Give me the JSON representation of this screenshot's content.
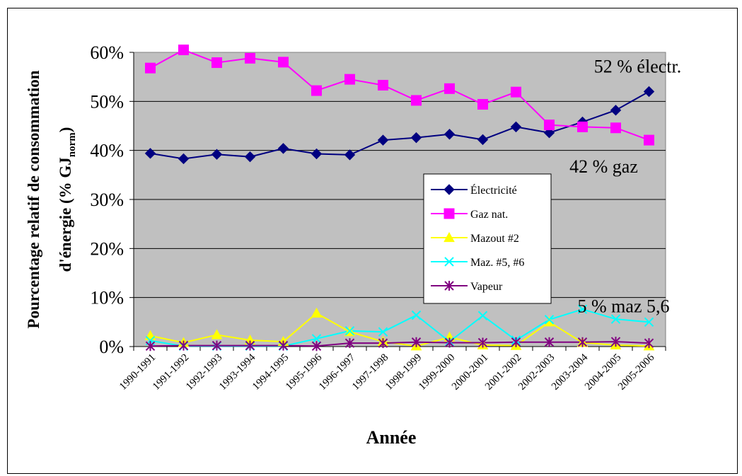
{
  "chart_data": {
    "type": "line",
    "title": "",
    "xlabel": "Année",
    "ylabel": {
      "line1": "Pourcentage relatif de consommation",
      "line2_prefix": "d'énergie (% GJ",
      "line2_sub": "norm",
      "line2_suffix": ")"
    },
    "ylim": [
      0,
      0.6
    ],
    "yticks": [
      "0%",
      "10%",
      "20%",
      "30%",
      "40%",
      "50%",
      "60%"
    ],
    "ytick_values": [
      0,
      0.1,
      0.2,
      0.3,
      0.4,
      0.5,
      0.6
    ],
    "grid": true,
    "legend_position": "center-right",
    "categories": [
      "1990-1991",
      "1991-1992",
      "1992-1993",
      "1993-1994",
      "1994-1995",
      "1995-1996",
      "1996-1997",
      "1997-1998",
      "1998-1999",
      "1999-2000",
      "2000-2001",
      "2001-2002",
      "2002-2003",
      "2003-2004",
      "2004-2005",
      "2005-2006"
    ],
    "series": [
      {
        "name": "Électricité",
        "color": "#000080",
        "marker": "diamond",
        "values": [
          0.394,
          0.383,
          0.392,
          0.387,
          0.404,
          0.393,
          0.391,
          0.421,
          0.426,
          0.433,
          0.422,
          0.448,
          0.436,
          0.458,
          0.482,
          0.52
        ]
      },
      {
        "name": "Gaz nat.",
        "color": "#ff00ff",
        "marker": "square",
        "values": [
          0.568,
          0.605,
          0.579,
          0.588,
          0.58,
          0.522,
          0.545,
          0.533,
          0.502,
          0.526,
          0.494,
          0.519,
          0.452,
          0.448,
          0.446,
          0.421
        ]
      },
      {
        "name": "Mazout #2",
        "color": "#ffff00",
        "marker": "triangle",
        "values": [
          0.022,
          0.008,
          0.024,
          0.013,
          0.01,
          0.068,
          0.03,
          0.01,
          0.001,
          0.019,
          0.003,
          0.002,
          0.05,
          0.008,
          0.003,
          0.001
        ]
      },
      {
        "name": "Maz. #5, #6",
        "color": "#00ffff",
        "marker": "x",
        "values": [
          0.012,
          0.001,
          0.001,
          0.001,
          0.001,
          0.016,
          0.032,
          0.03,
          0.064,
          0.01,
          0.063,
          0.013,
          0.055,
          0.076,
          0.056,
          0.05
        ]
      },
      {
        "name": "Vapeur",
        "color": "#800080",
        "marker": "star",
        "values": [
          0.001,
          0.002,
          0.002,
          0.002,
          0.002,
          0.001,
          0.007,
          0.007,
          0.009,
          0.008,
          0.008,
          0.009,
          0.009,
          0.009,
          0.01,
          0.007
        ]
      }
    ],
    "annotations": [
      {
        "text": "52 % électr.",
        "category": "2005-2006",
        "value": 0.52
      },
      {
        "text": "42 % gaz",
        "category": "2005-2006",
        "value": 0.421
      },
      {
        "text": "5 % maz 5,6",
        "category": "2005-2006",
        "value": 0.05
      }
    ]
  }
}
